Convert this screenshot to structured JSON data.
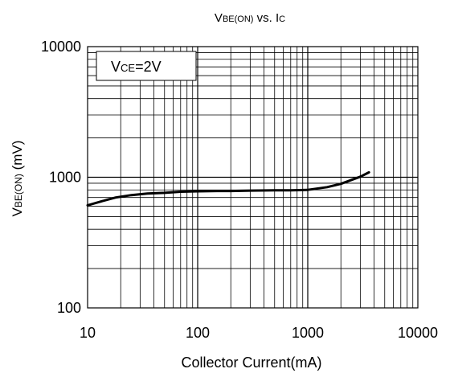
{
  "chart_data": {
    "type": "line",
    "title": {
      "main": "V",
      "sub": "BE(ON)",
      "mid": " vs. I",
      "tail": "C"
    },
    "xlabel": "Collector Current(mA)",
    "ylabel": {
      "main": "V",
      "sub": "BE(ON)",
      "tail": " (mV)"
    },
    "x_scale": "log",
    "y_scale": "log",
    "xlim": [
      10,
      10000
    ],
    "ylim": [
      100,
      10000
    ],
    "x_ticks": [
      "10",
      "100",
      "1000",
      "10000"
    ],
    "y_ticks": [
      "100",
      "1000",
      "10000"
    ],
    "grid": true,
    "annotation": {
      "main": "V",
      "sub": "CE",
      "tail": "=2V"
    },
    "series": [
      {
        "x": [
          10,
          13,
          18,
          25,
          35,
          50,
          70,
          100,
          150,
          200,
          300,
          500,
          700,
          1000,
          1500,
          2000,
          3000,
          3600
        ],
        "y": [
          610,
          650,
          700,
          730,
          750,
          760,
          775,
          780,
          785,
          785,
          790,
          795,
          795,
          800,
          840,
          890,
          1010,
          1090
        ],
        "color": "#000000"
      }
    ]
  }
}
